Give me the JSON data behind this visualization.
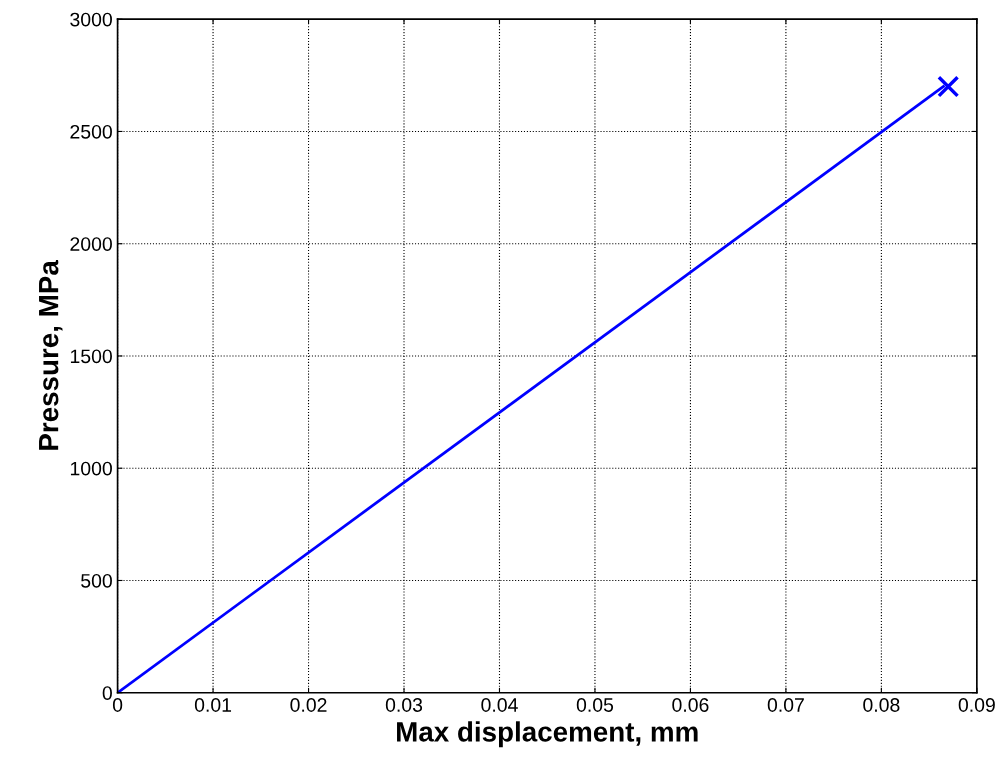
{
  "chart_data": {
    "type": "line",
    "xlabel": "Max displacement, mm",
    "ylabel": "Pressure, MPa",
    "xlim": [
      0,
      0.09
    ],
    "ylim": [
      0,
      3000
    ],
    "xticks": [
      0,
      0.01,
      0.02,
      0.03,
      0.04,
      0.05,
      0.06,
      0.07,
      0.08,
      0.09
    ],
    "yticks": [
      0,
      500,
      1000,
      1500,
      2000,
      2500,
      3000
    ],
    "grid": true,
    "line_style": "solid",
    "series": [
      {
        "color": "#0000ff",
        "x": [
          0,
          0.0865
        ],
        "values": [
          0,
          2700
        ],
        "marker": "none"
      },
      {
        "type": "scatter",
        "color": "#0000ff",
        "x": [
          0.087
        ],
        "values": [
          2700
        ],
        "marker": "cross"
      }
    ]
  }
}
